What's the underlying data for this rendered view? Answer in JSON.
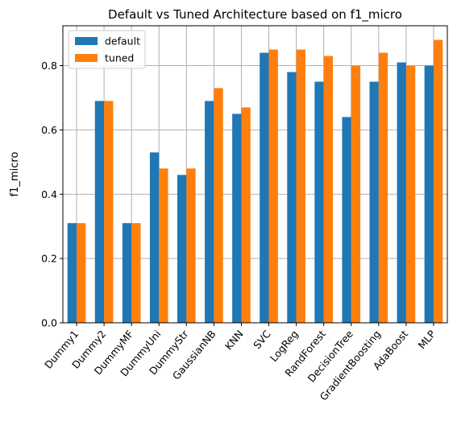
{
  "chart_data": {
    "type": "bar",
    "title": "Default vs Tuned Architecture based on f1_micro",
    "xlabel": "",
    "ylabel": "f1_micro",
    "ylim": [
      0,
      0.924
    ],
    "yticks": [
      "0.0",
      "0.2",
      "0.4",
      "0.6",
      "0.8"
    ],
    "grid": true,
    "legend_position": "upper-left",
    "categories": [
      "Dummy1",
      "Dummy2",
      "DummyMF",
      "DummyUni",
      "DummyStr",
      "GaussianNB",
      "KNN",
      "SVC",
      "LogReg",
      "RandForest",
      "DecisionTree",
      "GradientBoosting",
      "AdaBoost",
      "MLP"
    ],
    "series": [
      {
        "name": "default",
        "color": "#1f77b4",
        "values": [
          0.31,
          0.69,
          0.31,
          0.53,
          0.46,
          0.69,
          0.65,
          0.84,
          0.78,
          0.75,
          0.64,
          0.75,
          0.81,
          0.8
        ]
      },
      {
        "name": "tuned",
        "color": "#ff7f0e",
        "values": [
          0.31,
          0.69,
          0.31,
          0.48,
          0.48,
          0.73,
          0.67,
          0.85,
          0.85,
          0.83,
          0.8,
          0.84,
          0.8,
          0.88
        ]
      }
    ]
  }
}
